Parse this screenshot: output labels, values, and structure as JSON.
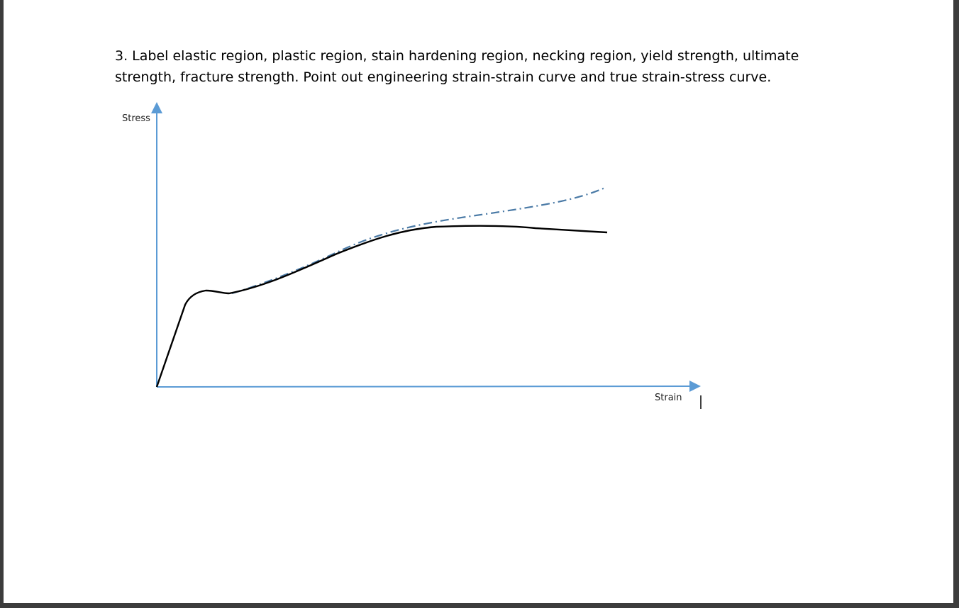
{
  "question": {
    "line1": "3. Label elastic region, plastic region, stain hardening region, necking region, yield strength, ultimate",
    "line2": "strength, fracture strength. Point out engineering strain-strain curve and true strain-stress curve."
  },
  "axes": {
    "y_label": "Stress",
    "x_label": "Strain",
    "color": "#5b9bd5"
  },
  "curves": {
    "engineering_color": "#000000",
    "true_color": "#4a7aa6"
  }
}
